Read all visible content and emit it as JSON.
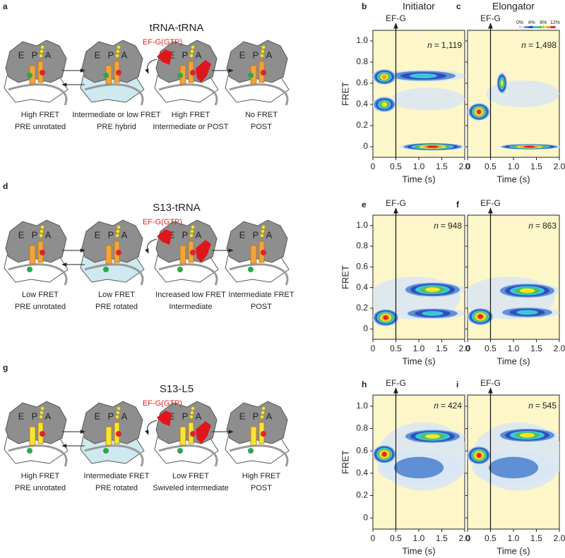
{
  "rows": [
    {
      "letter": "a",
      "title": "tRNA-tRNA",
      "factor": "EF-G(GTP)",
      "states": [
        {
          "line1": "High FRET",
          "line2": "PRE unrotated"
        },
        {
          "line1": "Intermediate or low FRET",
          "line2": "PRE hybrid"
        },
        {
          "line1": "High FRET",
          "line2": "Intermediate or POST"
        },
        {
          "line1": "No FRET",
          "line2": "POST"
        }
      ]
    },
    {
      "letter": "d",
      "title": "S13-tRNA",
      "factor": "EF-G(GTP)",
      "states": [
        {
          "line1": "Low FRET",
          "line2": "PRE unrotated"
        },
        {
          "line1": "Low FRET",
          "line2": "PRE rotated"
        },
        {
          "line1": "Increased low FRET",
          "line2": "Intermediate"
        },
        {
          "line1": "Intermediate FRET",
          "line2": "POST"
        }
      ]
    },
    {
      "letter": "g",
      "title": "S13-L5",
      "factor": "EF-G(GTP)",
      "states": [
        {
          "line1": "High FRET",
          "line2": "PRE unrotated"
        },
        {
          "line1": "Intermediate FRET",
          "line2": "PRE rotated"
        },
        {
          "line1": "Low FRET",
          "line2": "Swiveled intermediate"
        },
        {
          "line1": "High FRET",
          "line2": "POST"
        }
      ]
    }
  ],
  "sites": [
    "E",
    "P",
    "A"
  ],
  "axes": {
    "xlabel": "Time (s)",
    "ylabel": "FRET",
    "xlim": [
      0,
      2
    ],
    "ylim": [
      -0.1,
      1.1
    ],
    "xticks": [
      0,
      0.5,
      {
        "value": 1,
        "label": "1.0"
      },
      1.5,
      {
        "value": 2,
        "label": "2.0"
      }
    ],
    "yticks": [
      0,
      0.2,
      0.4,
      0.6,
      0.8,
      {
        "value": 1,
        "label": "1.0"
      }
    ],
    "marker": {
      "label": "EF-G",
      "x": 0.5
    },
    "n_symbol": "n",
    "n_equals": "="
  },
  "colorbar": [
    {
      "value": 0,
      "label": "0%"
    },
    {
      "value": 4,
      "label": "4%"
    },
    {
      "value": 8,
      "label": "8%"
    },
    {
      "value": 12,
      "label": "12%"
    }
  ],
  "plots": [
    {
      "letter": "b",
      "title": "Initiator",
      "count": "1,119"
    },
    {
      "letter": "c",
      "title": "Elongator",
      "count": "1,498"
    },
    {
      "letter": "e",
      "count": "948"
    },
    {
      "letter": "f",
      "count": "863"
    },
    {
      "letter": "h",
      "count": "424"
    },
    {
      "letter": "i",
      "count": "545"
    }
  ]
}
